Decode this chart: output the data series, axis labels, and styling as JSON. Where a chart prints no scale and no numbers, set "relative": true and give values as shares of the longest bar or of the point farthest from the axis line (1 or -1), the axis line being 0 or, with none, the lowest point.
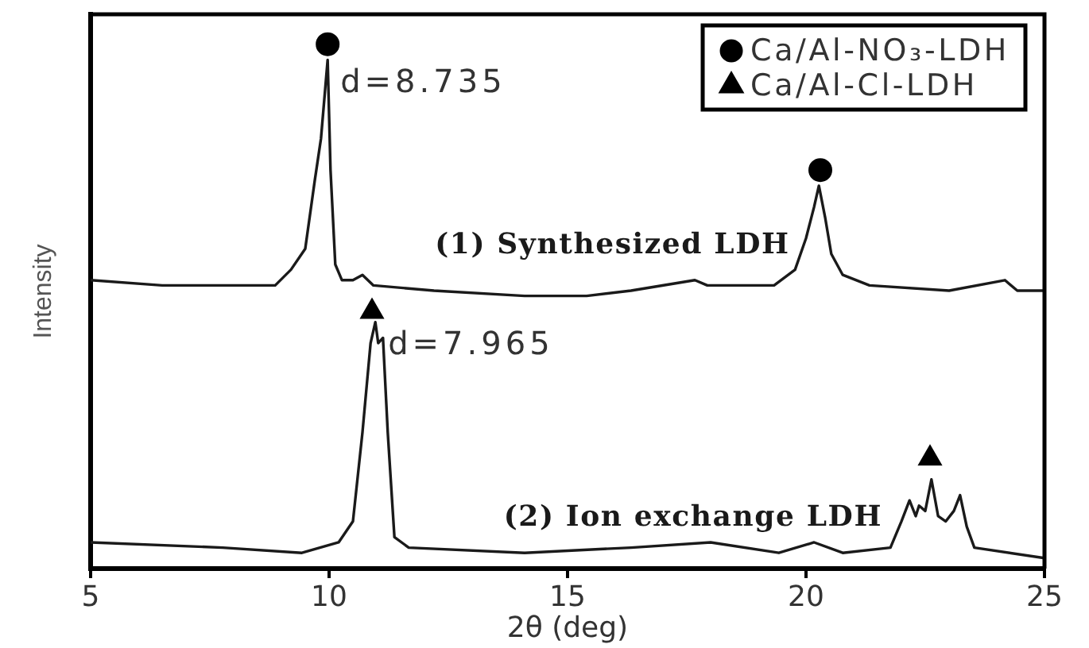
{
  "chart_data": {
    "type": "line",
    "xlabel": "2θ (deg)",
    "ylabel": "Intensity",
    "relative": true,
    "xlim": [
      5,
      25
    ],
    "xticks": [
      5,
      10,
      15,
      20,
      25
    ],
    "legend": "top right",
    "series": [
      {
        "name": "(1) Synthesized LDH",
        "color": "#1a1a1a",
        "x": [
          5.0,
          6.5,
          8.87,
          9.2,
          9.5,
          9.7,
          9.83,
          9.97,
          10.03,
          10.13,
          10.27,
          10.5,
          10.7,
          10.93,
          12.2,
          14.1,
          15.4,
          16.33,
          17.67,
          17.93,
          18.67,
          19.33,
          19.77,
          20.0,
          20.17,
          20.27,
          20.4,
          20.53,
          20.77,
          21.33,
          23.0,
          24.17,
          24.43,
          25.0
        ],
        "values": [
          0.55,
          0.54,
          0.54,
          0.57,
          0.61,
          0.74,
          0.82,
          0.97,
          0.76,
          0.58,
          0.55,
          0.55,
          0.56,
          0.54,
          0.53,
          0.52,
          0.52,
          0.53,
          0.55,
          0.54,
          0.54,
          0.54,
          0.57,
          0.63,
          0.69,
          0.73,
          0.67,
          0.6,
          0.56,
          0.54,
          0.53,
          0.55,
          0.53,
          0.53
        ]
      },
      {
        "name": "(2) Ion exchange LDH",
        "color": "#1a1a1a",
        "x": [
          5.0,
          7.77,
          9.43,
          10.2,
          10.5,
          10.7,
          10.87,
          10.97,
          11.03,
          11.13,
          11.23,
          11.37,
          11.67,
          14.1,
          16.33,
          18.0,
          19.43,
          20.17,
          20.77,
          21.77,
          22.0,
          22.17,
          22.3,
          22.37,
          22.5,
          22.63,
          22.77,
          22.93,
          23.1,
          23.23,
          23.37,
          23.53,
          25.0
        ],
        "values": [
          0.05,
          0.04,
          0.03,
          0.05,
          0.09,
          0.26,
          0.43,
          0.47,
          0.43,
          0.44,
          0.26,
          0.06,
          0.04,
          0.03,
          0.04,
          0.05,
          0.03,
          0.05,
          0.03,
          0.04,
          0.09,
          0.13,
          0.1,
          0.12,
          0.11,
          0.17,
          0.1,
          0.09,
          0.11,
          0.14,
          0.08,
          0.04,
          0.02
        ]
      },
      {
        "name": "Ca/Al-NO₃-LDH",
        "type": "scatter",
        "marker": "circle",
        "color": "#000000",
        "x": [
          9.97,
          20.3
        ],
        "values": [
          1.0,
          0.76
        ]
      },
      {
        "name": "Ca/Al-Cl-LDH",
        "type": "scatter",
        "marker": "triangle",
        "color": "#000000",
        "x": [
          10.9,
          22.6
        ],
        "values": [
          0.49,
          0.21
        ]
      }
    ],
    "annotations": [
      {
        "text": "d=8.735",
        "x": 9.97,
        "y": 0.97
      },
      {
        "text": "d=7.965",
        "x": 10.97,
        "y": 0.47
      }
    ]
  }
}
